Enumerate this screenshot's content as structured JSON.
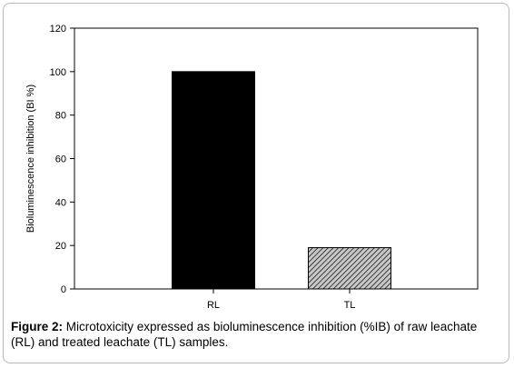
{
  "chart_data": {
    "type": "bar",
    "categories": [
      "RL",
      "TL"
    ],
    "values": [
      100,
      19
    ],
    "title": "",
    "xlabel": "",
    "ylabel": "Bioluminescence inhibition (BI %)",
    "ylim": [
      0,
      120
    ],
    "yticks": [
      0,
      20,
      40,
      60,
      80,
      100,
      120
    ],
    "bar_styles": [
      "solid-black",
      "hatched-gray"
    ],
    "colors": {
      "RL": "#000000",
      "TL_fill": "#c8c8c8",
      "TL_hatch": "#000000"
    },
    "grid": false,
    "legend": "none"
  },
  "caption": {
    "label": "Figure 2:",
    "text": " Microtoxicity expressed as bioluminescence inhibition (%IB) of raw leachate (RL) and treated leachate (TL) samples."
  }
}
